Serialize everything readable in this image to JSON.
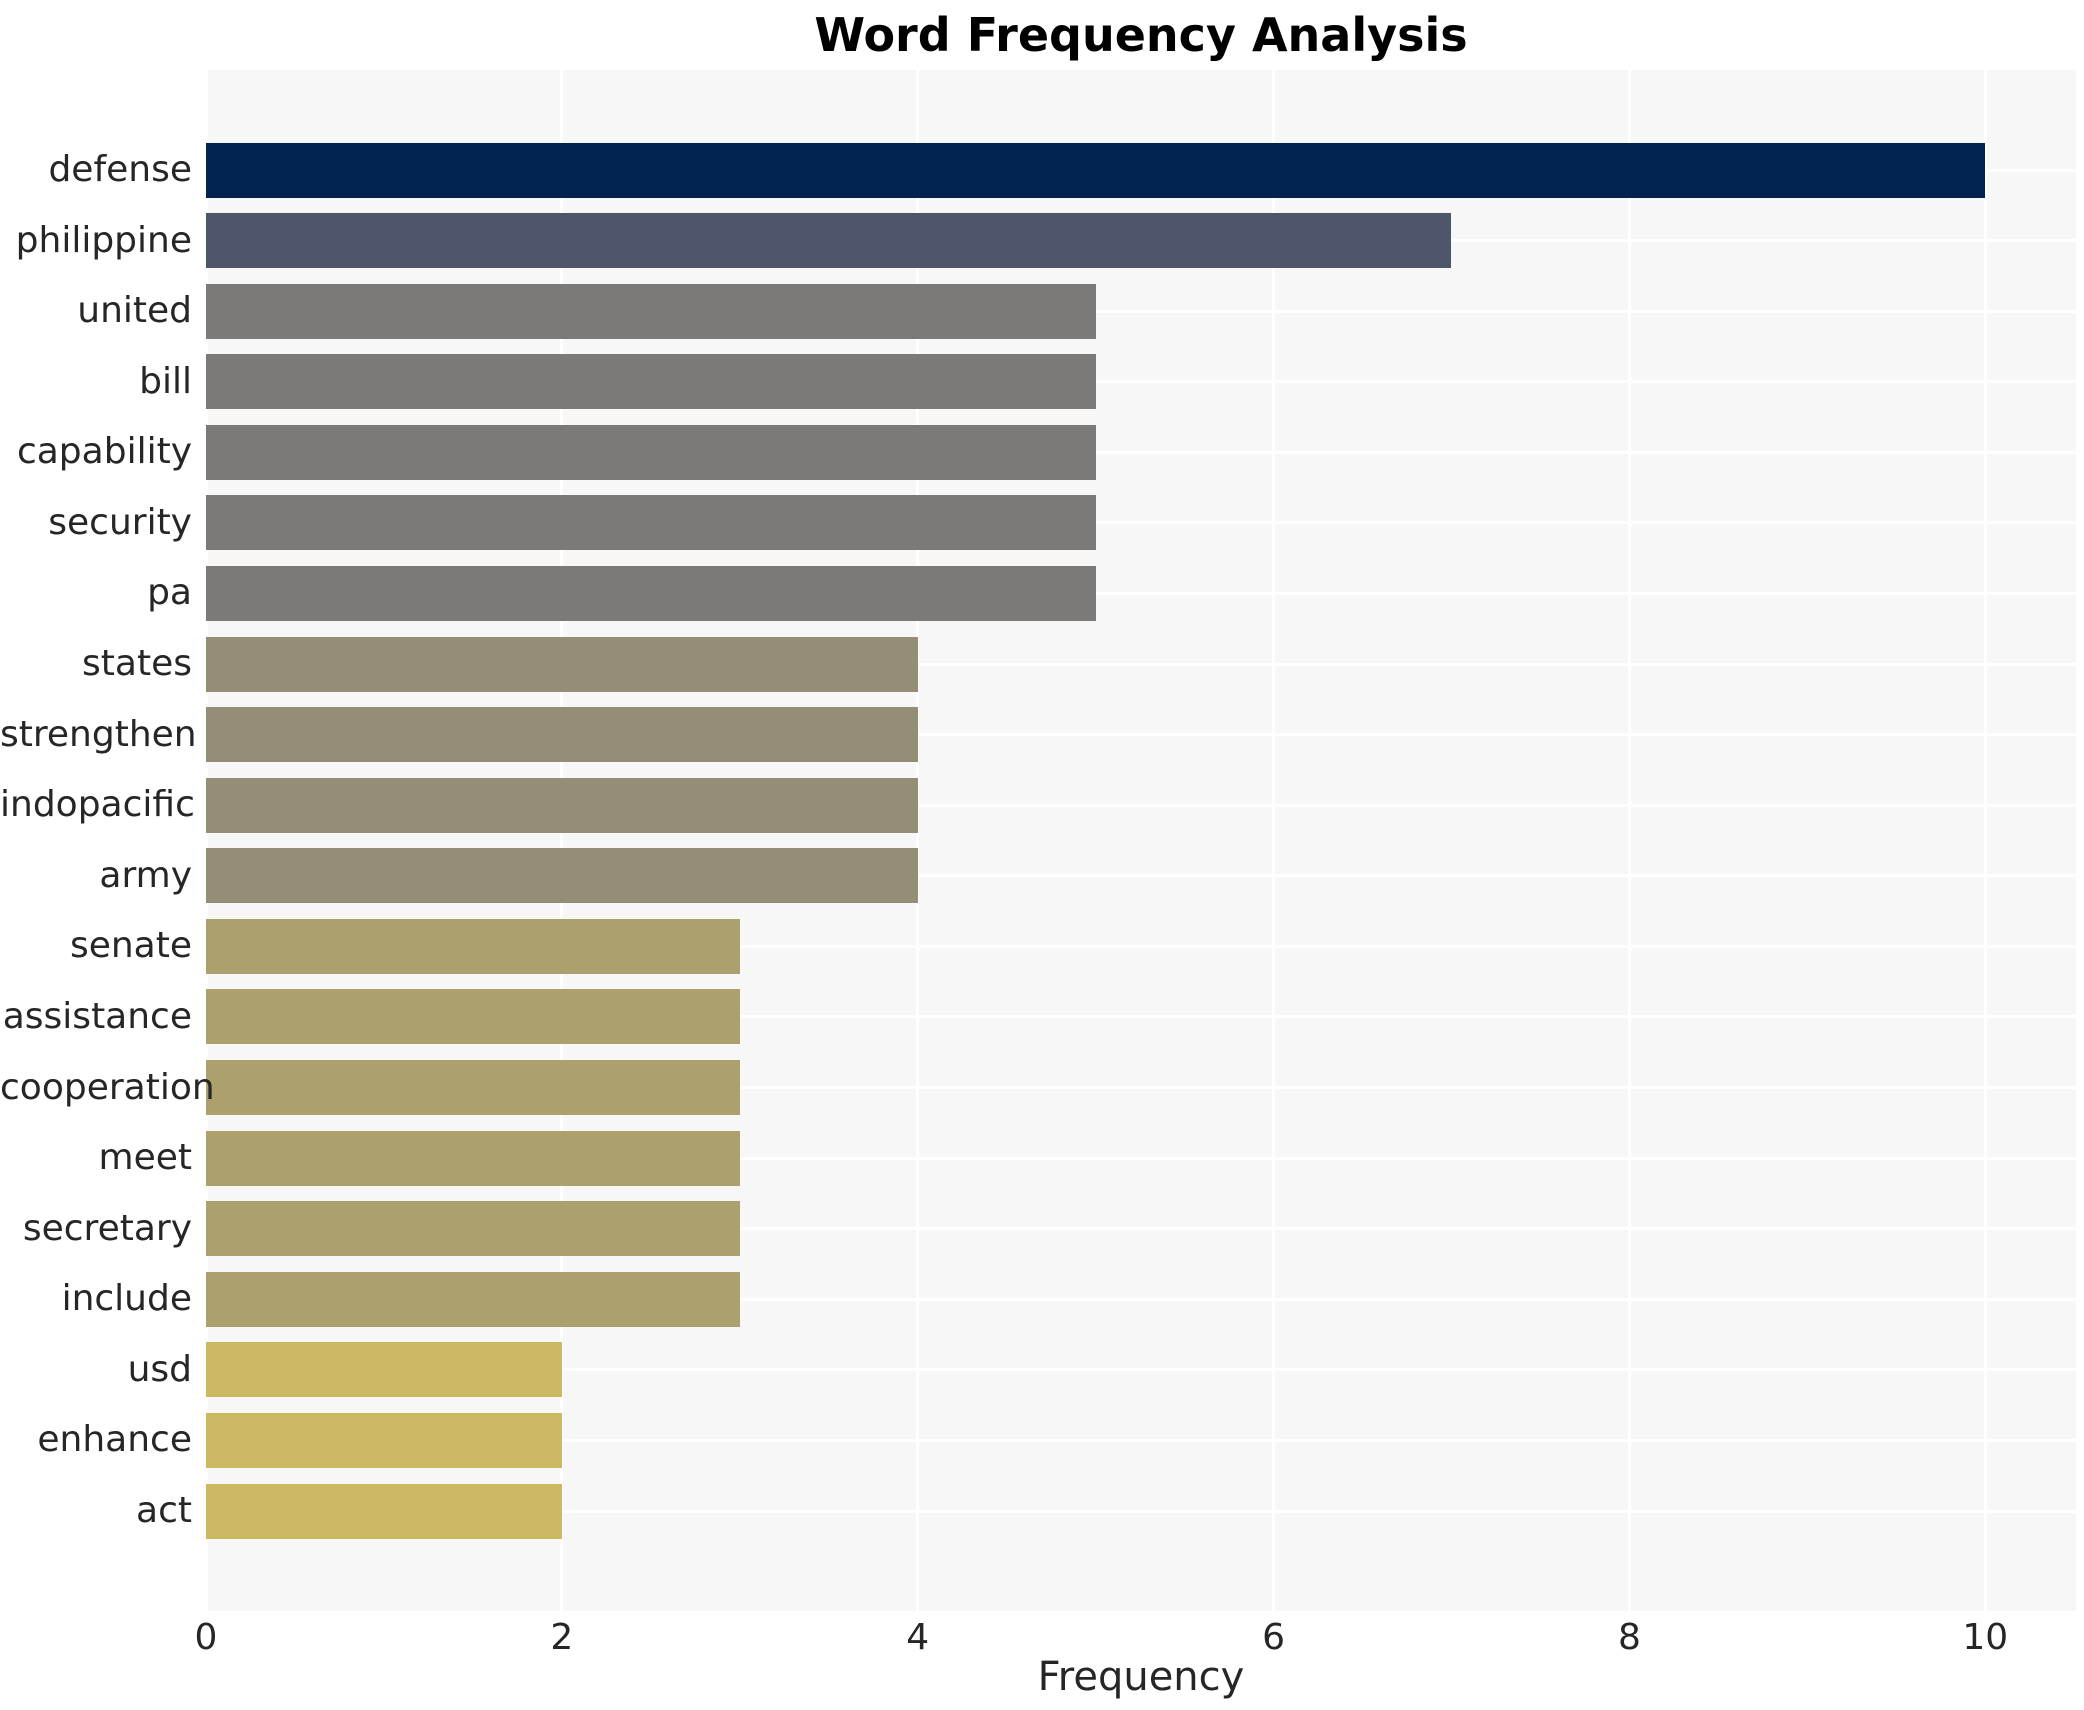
{
  "chart_data": {
    "type": "bar",
    "orientation": "horizontal",
    "title": "Word Frequency Analysis",
    "xlabel": "Frequency",
    "ylabel": "",
    "categories": [
      "defense",
      "philippine",
      "united",
      "bill",
      "capability",
      "security",
      "pa",
      "states",
      "strengthen",
      "indopacific",
      "army",
      "senate",
      "assistance",
      "cooperation",
      "meet",
      "secretary",
      "include",
      "usd",
      "enhance",
      "act"
    ],
    "values": [
      10,
      7,
      5,
      5,
      5,
      5,
      5,
      4,
      4,
      4,
      4,
      3,
      3,
      3,
      3,
      3,
      3,
      2,
      2,
      2
    ],
    "bar_colors": [
      "#02234e",
      "#4e566c",
      "#7b7a78",
      "#7b7a78",
      "#7b7a78",
      "#7b7a78",
      "#7b7a78",
      "#948e77",
      "#948e77",
      "#948e77",
      "#948e77",
      "#aca06c",
      "#aca06c",
      "#aca06c",
      "#aca06c",
      "#aca06c",
      "#aca06c",
      "#cbb964",
      "#cbb964",
      "#cbb964"
    ],
    "xlim": [
      0,
      10.51
    ],
    "xticks": [
      0,
      2,
      4,
      6,
      8,
      10
    ],
    "grid": true,
    "legend": false,
    "plot_background_color": "#f7f7f7",
    "gridline_color": "#ffffff",
    "title_color": "#000000",
    "tick_label_color": "#262626"
  }
}
